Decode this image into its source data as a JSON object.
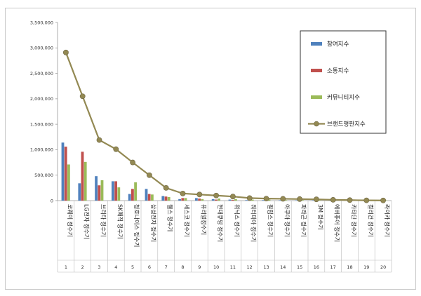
{
  "chart_data": {
    "type": "bar",
    "title": "",
    "xlabel": "",
    "ylabel": "",
    "ylim": [
      0,
      3500000
    ],
    "yticks": [
      "0",
      "500,000",
      "1,000,000",
      "1,500,000",
      "2,000,000",
      "2,500,000",
      "3,000,000",
      "3,500,000"
    ],
    "rank_labels": [
      "1",
      "2",
      "3",
      "4",
      "5",
      "6",
      "7",
      "8",
      "9",
      "10",
      "11",
      "12",
      "13",
      "14",
      "15",
      "16",
      "17",
      "18",
      "19",
      "20"
    ],
    "categories": [
      "코웨이 정수기",
      "LG전자 정수기",
      "브리타 정수기",
      "SK매직 정수기",
      "청호나이스 정수기",
      "삼성전자 정수기",
      "웰스 정수기",
      "세스코 정수기",
      "퓨리얼정수기",
      "현대큐밍 정수기",
      "위닉스 정수기",
      "워터피아 정수기",
      "필립스 정수기",
      "아쿠아 정수기",
      "파라곤 정수기",
      "3M 정수기",
      "에버퓨어 정수기",
      "카타딘 정수기",
      "컬리건 정수기",
      "라이카 정수기"
    ],
    "series": [
      {
        "name": "참여지수",
        "type": "bar",
        "color": "#4f81bd",
        "values": [
          1140000,
          340000,
          480000,
          380000,
          130000,
          230000,
          90000,
          30000,
          50000,
          30000,
          20000,
          10000,
          10000,
          8000,
          7000,
          5000,
          5000,
          3000,
          3000,
          2000
        ]
      },
      {
        "name": "소통지수",
        "type": "bar",
        "color": "#c0504d",
        "values": [
          1060000,
          960000,
          300000,
          380000,
          230000,
          130000,
          80000,
          50000,
          40000,
          20000,
          15000,
          8000,
          8000,
          6000,
          5000,
          4000,
          3000,
          2000,
          2000,
          1000
        ]
      },
      {
        "name": "커뮤니티지수",
        "type": "bar",
        "color": "#9bbb59",
        "values": [
          710000,
          760000,
          400000,
          260000,
          360000,
          120000,
          70000,
          50000,
          30000,
          40000,
          30000,
          20000,
          20000,
          10000,
          10000,
          8000,
          6000,
          4000,
          3000,
          2000
        ]
      },
      {
        "name": "브랜드평판지수",
        "type": "line",
        "color": "#938953",
        "values": [
          2910000,
          2050000,
          1190000,
          1010000,
          750000,
          500000,
          250000,
          140000,
          120000,
          100000,
          80000,
          50000,
          40000,
          35000,
          30000,
          25000,
          15000,
          10000,
          5000,
          3000
        ]
      }
    ],
    "grid": false,
    "legend_position": "right"
  }
}
